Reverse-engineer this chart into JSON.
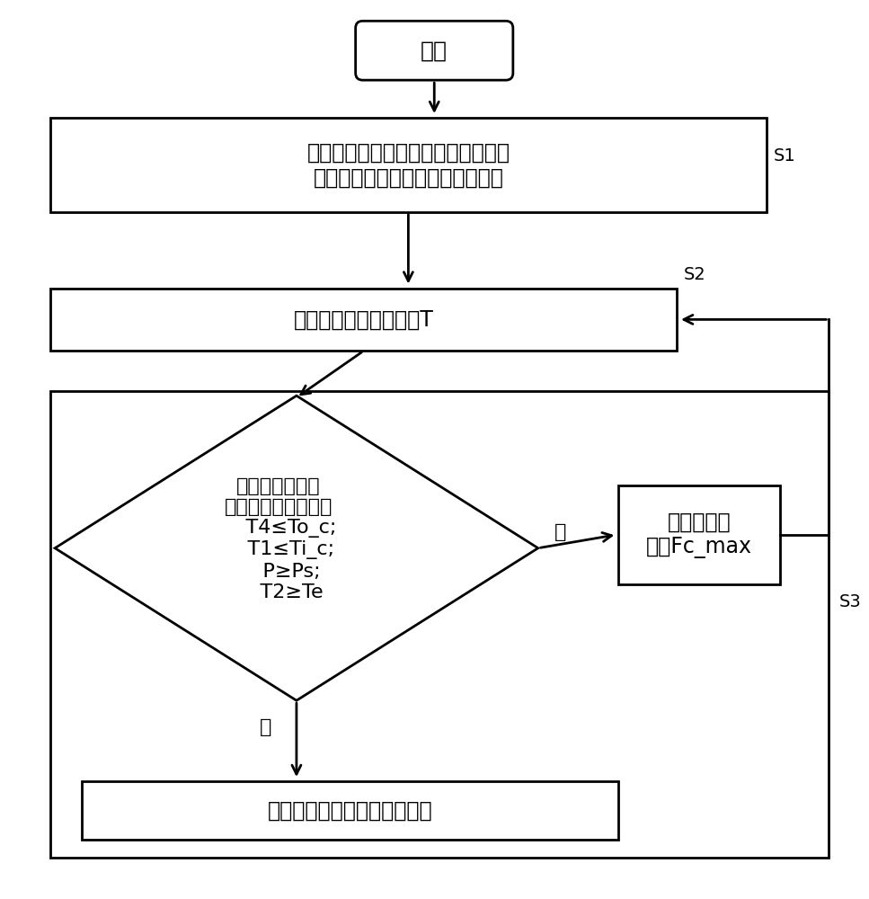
{
  "bg_color": "#ffffff",
  "line_color": "#000000",
  "text_color": "#000000",
  "start_text": "开始",
  "s1_text": "根据室内机预设风速和空调制冷模式\n控制压缩机按照限频保护方案运行",
  "s1_label": "S1",
  "s2_text": "控制空调运行预设时间T",
  "s2_label": "S2",
  "diamond_text_line1": "满足下述条件中",
  "diamond_text_line2": "的任意一项或几项：",
  "diamond_text_line3": "T4≤To_c;",
  "diamond_text_line4": "T1≤Ti_c;",
  "diamond_text_line5": "P≥Ps;",
  "diamond_text_line6": "T2≥Te",
  "s3_text": "压缩机运行\n频率Fc_max",
  "s3_label": "S3",
  "end_text": "压缩机按照限频保护方案运行",
  "no_label": "否",
  "yes_label": "是"
}
